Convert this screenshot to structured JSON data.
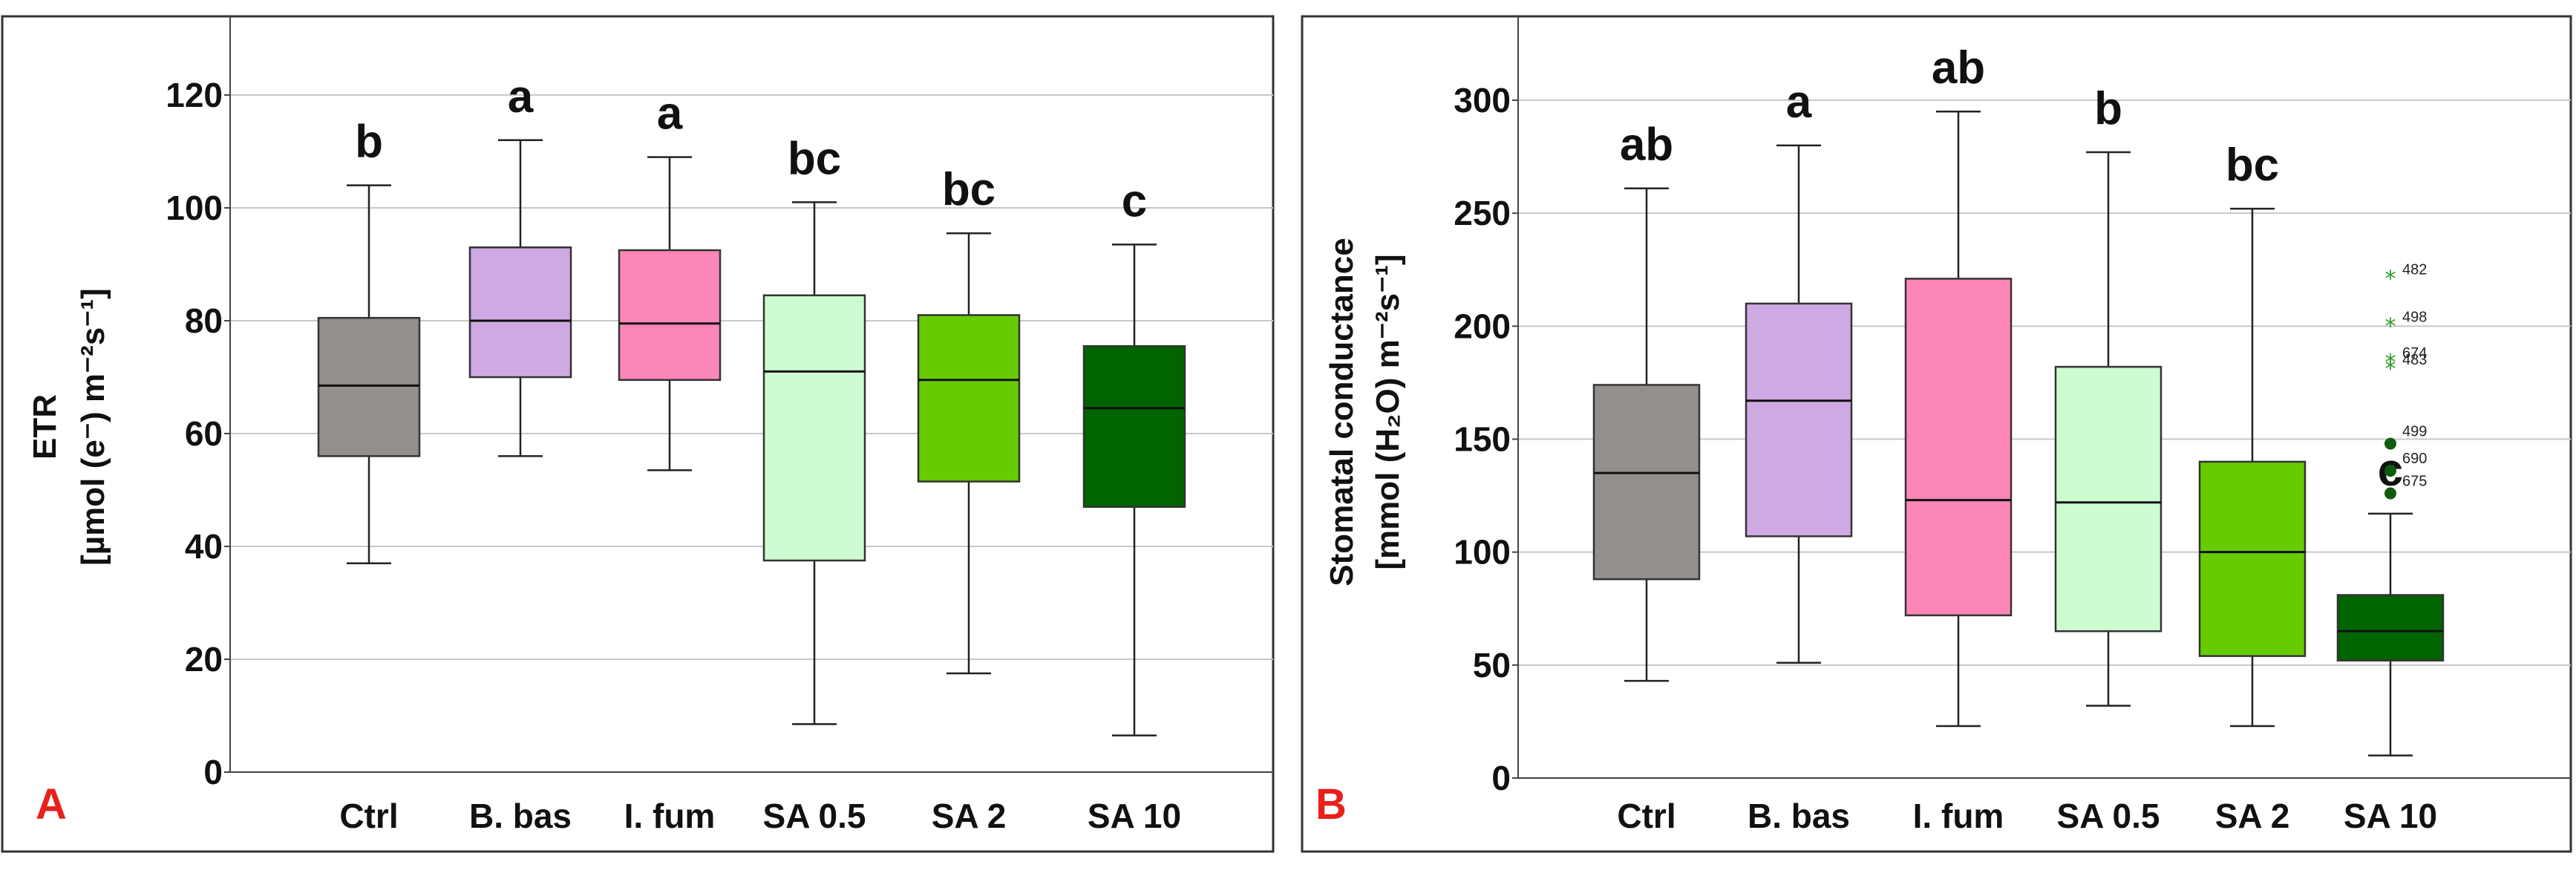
{
  "colors": {
    "box": [
      "#948f8b",
      "#cfa9e4",
      "#fc86b7",
      "#ccfcd0",
      "#66cc00",
      "#006400"
    ],
    "grid": "#c8c8c8",
    "frame": "#333333",
    "panel_letter": "#e8201a",
    "outlier_dot": "#0f5c0f",
    "outlier_star": "#2f9b2f"
  },
  "chart_data": [
    {
      "type": "boxplot",
      "panel_label": "A",
      "ylabel_line1": "ETR",
      "ylabel_line2": "[µmol (e⁻) m⁻²s⁻¹]",
      "ylim": [
        0,
        130
      ],
      "yticks": [
        0,
        20,
        40,
        60,
        80,
        100,
        120
      ],
      "grid": true,
      "categories": [
        "Ctrl",
        "B. bas",
        "I. fum",
        "SA 0.5",
        "SA 2",
        "SA 10"
      ],
      "groups": [
        "b",
        "a",
        "a",
        "bc",
        "bc",
        "c"
      ],
      "boxes": [
        {
          "min": 37,
          "q1": 56,
          "median": 68.5,
          "q3": 80.5,
          "max": 104
        },
        {
          "min": 56,
          "q1": 70,
          "median": 80,
          "q3": 93,
          "max": 112
        },
        {
          "min": 53.5,
          "q1": 69.5,
          "median": 79.5,
          "q3": 92.5,
          "max": 109
        },
        {
          "min": 8.5,
          "q1": 37.5,
          "median": 71,
          "q3": 84.5,
          "max": 101
        },
        {
          "min": 17.5,
          "q1": 51.5,
          "median": 69.5,
          "q3": 81,
          "max": 95.5
        },
        {
          "min": 6.5,
          "q1": 47,
          "median": 64.5,
          "q3": 75.5,
          "max": 93.5
        }
      ],
      "outliers": []
    },
    {
      "type": "boxplot",
      "panel_label": "B",
      "ylabel_line1": "Stomatal conductance",
      "ylabel_line2": "[mmol (H₂O) m⁻²s⁻¹]",
      "ylim": [
        0,
        330
      ],
      "yticks": [
        0,
        50,
        100,
        150,
        200,
        250,
        300
      ],
      "grid": true,
      "categories": [
        "Ctrl",
        "B. bas",
        "I. fum",
        "SA 0.5",
        "SA 2",
        "SA 10"
      ],
      "groups": [
        "ab",
        "a",
        "ab",
        "b",
        "bc",
        "c"
      ],
      "boxes": [
        {
          "min": 43,
          "q1": 88,
          "median": 135,
          "q3": 174,
          "max": 261
        },
        {
          "min": 51,
          "q1": 107,
          "median": 167,
          "q3": 210,
          "max": 280
        },
        {
          "min": 23,
          "q1": 72,
          "median": 123,
          "q3": 221,
          "max": 295
        },
        {
          "min": 32,
          "q1": 65,
          "median": 122,
          "q3": 182,
          "max": 277
        },
        {
          "min": 23,
          "q1": 54,
          "median": 100,
          "q3": 140,
          "max": 252
        },
        {
          "min": 10,
          "q1": 52,
          "median": 65,
          "q3": 81,
          "max": 117
        }
      ],
      "outliers": [
        {
          "category": "SA 10",
          "value": 221,
          "label": "482",
          "kind": "star"
        },
        {
          "category": "SA 10",
          "value": 200,
          "label": "498",
          "kind": "star"
        },
        {
          "category": "SA 10",
          "value": 184,
          "label": "674",
          "kind": "star"
        },
        {
          "category": "SA 10",
          "value": 181,
          "label": "483",
          "kind": "star"
        },
        {
          "category": "SA 10",
          "value": 148,
          "label": "499",
          "kind": "dot"
        },
        {
          "category": "SA 10",
          "value": 136,
          "label": "690",
          "kind": "dot"
        },
        {
          "category": "SA 10",
          "value": 126,
          "label": "675",
          "kind": "dot"
        }
      ]
    }
  ]
}
